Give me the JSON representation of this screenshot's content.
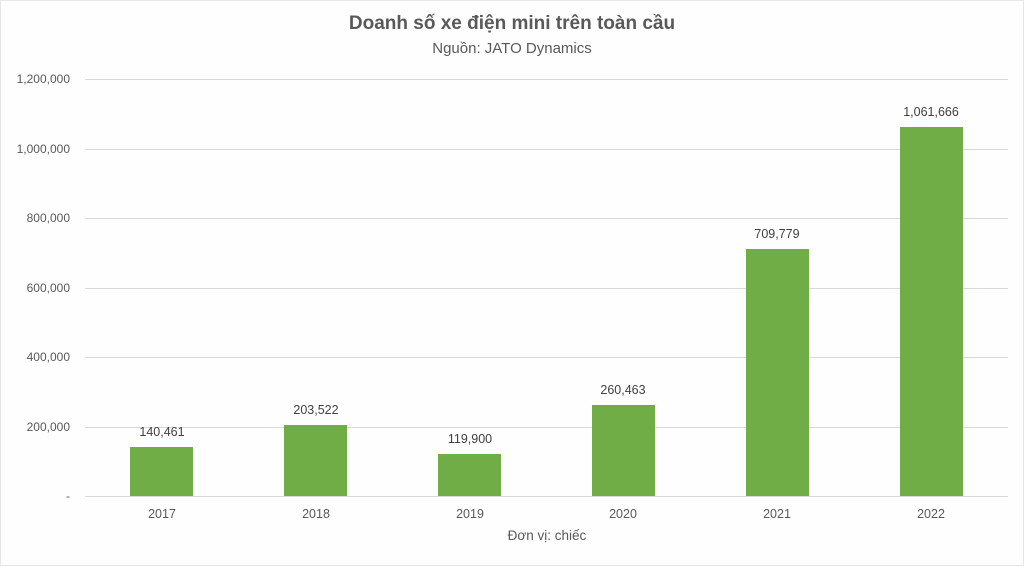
{
  "chart_data": {
    "type": "bar",
    "title": "Doanh số xe điện mini trên toàn cầu",
    "subtitle": "Nguồn: JATO Dynamics",
    "xlabel": "Đơn vị: chiếc",
    "ylabel": "",
    "categories": [
      "2017",
      "2018",
      "2019",
      "2020",
      "2021",
      "2022"
    ],
    "values": [
      140461,
      203522,
      119900,
      260463,
      709779,
      1061666
    ],
    "data_labels": [
      "140,461",
      "203,522",
      "119,900",
      "260,463",
      "709,779",
      "1,061,666"
    ],
    "ylim": [
      0,
      1200000
    ],
    "yticks": [
      0,
      200000,
      400000,
      600000,
      800000,
      1000000,
      1200000
    ],
    "ytick_labels": [
      "-",
      "200,000",
      "400,000",
      "600,000",
      "800,000",
      "1,000,000",
      "1,200,000"
    ],
    "grid": true,
    "legend": null,
    "colors": {
      "bar": "#70ad47",
      "grid": "#d9d9d9",
      "text": "#595959"
    }
  }
}
